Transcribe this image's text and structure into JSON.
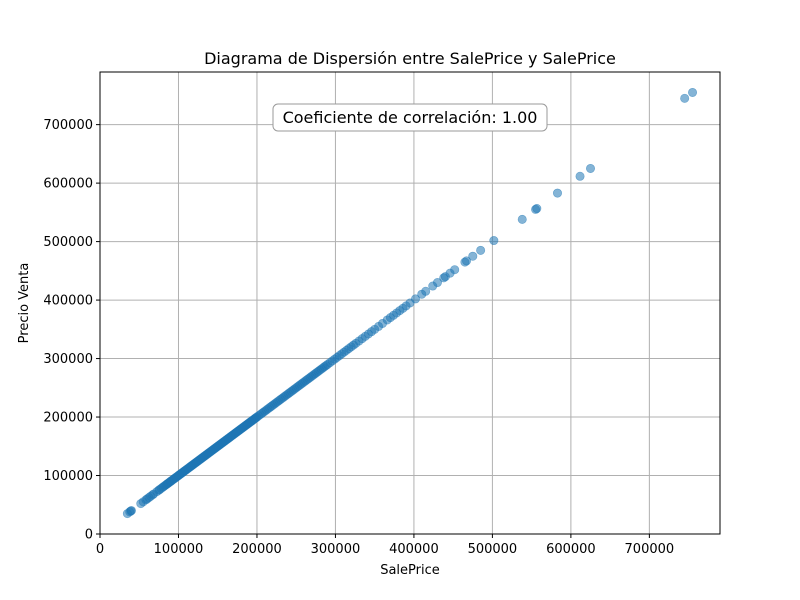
{
  "chart_data": {
    "type": "scatter",
    "title": "Diagrama de Dispersión entre SalePrice y SalePrice",
    "xlabel": "SalePrice",
    "ylabel": "Precio Venta",
    "xlim": [
      0,
      790000
    ],
    "ylim": [
      0,
      790000
    ],
    "xticks": [
      0,
      100000,
      200000,
      300000,
      400000,
      500000,
      600000,
      700000
    ],
    "yticks": [
      0,
      100000,
      200000,
      300000,
      400000,
      500000,
      600000,
      700000
    ],
    "xtick_labels": [
      "0",
      "100000",
      "200000",
      "300000",
      "400000",
      "500000",
      "600000",
      "700000"
    ],
    "ytick_labels": [
      "0",
      "100000",
      "200000",
      "300000",
      "400000",
      "500000",
      "600000",
      "700000"
    ],
    "grid": true,
    "annotation": "Coeficiente de correlación: 1.00",
    "point_color": "#1f77b4",
    "point_alpha": 0.55,
    "x": [
      34900,
      37900,
      39300,
      40000,
      52000,
      55000,
      58500,
      60000,
      62383,
      64500,
      67000,
      68400,
      72500,
      75000,
      76000,
      78000,
      80000,
      81000,
      82500,
      84000,
      85000,
      86000,
      87000,
      88000,
      89500,
      90000,
      91000,
      92000,
      93500,
      94500,
      95000,
      96500,
      97000,
      98000,
      99500,
      100000,
      101000,
      102000,
      103000,
      104000,
      105000,
      106000,
      107000,
      108000,
      109000,
      110000,
      111000,
      112000,
      113000,
      114500,
      115000,
      116000,
      117000,
      118000,
      119000,
      120000,
      121000,
      122000,
      123000,
      124000,
      125000,
      126000,
      127000,
      128000,
      129000,
      130000,
      131000,
      132000,
      133000,
      134000,
      135000,
      136000,
      137000,
      138000,
      139000,
      140000,
      141000,
      142000,
      143000,
      144000,
      145000,
      146000,
      147000,
      148000,
      149000,
      150000,
      151000,
      152000,
      153000,
      154000,
      155000,
      156000,
      157000,
      158000,
      159000,
      160000,
      161000,
      162000,
      163000,
      164000,
      165000,
      166000,
      167000,
      168000,
      169000,
      170000,
      171000,
      172000,
      173000,
      174000,
      175000,
      176000,
      177000,
      178000,
      179000,
      180000,
      181000,
      182000,
      183000,
      184000,
      185000,
      186000,
      187000,
      188000,
      189000,
      190000,
      191000,
      192000,
      193000,
      194000,
      195000,
      196000,
      197000,
      198000,
      199000,
      200000,
      202000,
      204000,
      206000,
      208000,
      210000,
      212000,
      214000,
      216000,
      218000,
      220000,
      222000,
      224000,
      226000,
      228000,
      230000,
      232000,
      234000,
      236000,
      238000,
      240000,
      242000,
      244000,
      246000,
      248000,
      250000,
      252000,
      254000,
      256000,
      258000,
      260000,
      262000,
      264000,
      266000,
      268000,
      270000,
      272000,
      274000,
      276000,
      278000,
      280000,
      282000,
      284000,
      286000,
      288000,
      290000,
      293000,
      296000,
      299000,
      302000,
      305000,
      308000,
      311000,
      314000,
      317000,
      320000,
      323000,
      326000,
      330000,
      334000,
      338000,
      342000,
      346000,
      350000,
      355000,
      360000,
      366000,
      370000,
      374000,
      378000,
      382000,
      386000,
      390000,
      395000,
      402000,
      410000,
      415000,
      424000,
      430000,
      438000,
      440000,
      446000,
      451950,
      465000,
      467000,
      475000,
      485000,
      501837,
      538000,
      555000,
      556581,
      582933,
      611657,
      625000,
      745000,
      755000
    ],
    "y": [
      34900,
      37900,
      39300,
      40000,
      52000,
      55000,
      58500,
      60000,
      62383,
      64500,
      67000,
      68400,
      72500,
      75000,
      76000,
      78000,
      80000,
      81000,
      82500,
      84000,
      85000,
      86000,
      87000,
      88000,
      89500,
      90000,
      91000,
      92000,
      93500,
      94500,
      95000,
      96500,
      97000,
      98000,
      99500,
      100000,
      101000,
      102000,
      103000,
      104000,
      105000,
      106000,
      107000,
      108000,
      109000,
      110000,
      111000,
      112000,
      113000,
      114500,
      115000,
      116000,
      117000,
      118000,
      119000,
      120000,
      121000,
      122000,
      123000,
      124000,
      125000,
      126000,
      127000,
      128000,
      129000,
      130000,
      131000,
      132000,
      133000,
      134000,
      135000,
      136000,
      137000,
      138000,
      139000,
      140000,
      141000,
      142000,
      143000,
      144000,
      145000,
      146000,
      147000,
      148000,
      149000,
      150000,
      151000,
      152000,
      153000,
      154000,
      155000,
      156000,
      157000,
      158000,
      159000,
      160000,
      161000,
      162000,
      163000,
      164000,
      165000,
      166000,
      167000,
      168000,
      169000,
      170000,
      171000,
      172000,
      173000,
      174000,
      175000,
      176000,
      177000,
      178000,
      179000,
      180000,
      181000,
      182000,
      183000,
      184000,
      185000,
      186000,
      187000,
      188000,
      189000,
      190000,
      191000,
      192000,
      193000,
      194000,
      195000,
      196000,
      197000,
      198000,
      199000,
      200000,
      202000,
      204000,
      206000,
      208000,
      210000,
      212000,
      214000,
      216000,
      218000,
      220000,
      222000,
      224000,
      226000,
      228000,
      230000,
      232000,
      234000,
      236000,
      238000,
      240000,
      242000,
      244000,
      246000,
      248000,
      250000,
      252000,
      254000,
      256000,
      258000,
      260000,
      262000,
      264000,
      266000,
      268000,
      270000,
      272000,
      274000,
      276000,
      278000,
      280000,
      282000,
      284000,
      286000,
      288000,
      290000,
      293000,
      296000,
      299000,
      302000,
      305000,
      308000,
      311000,
      314000,
      317000,
      320000,
      323000,
      326000,
      330000,
      334000,
      338000,
      342000,
      346000,
      350000,
      355000,
      360000,
      366000,
      370000,
      374000,
      378000,
      382000,
      386000,
      390000,
      395000,
      402000,
      410000,
      415000,
      424000,
      430000,
      438000,
      440000,
      446000,
      451950,
      465000,
      467000,
      475000,
      485000,
      501837,
      538000,
      555000,
      556581,
      582933,
      611657,
      625000,
      745000,
      755000
    ]
  }
}
